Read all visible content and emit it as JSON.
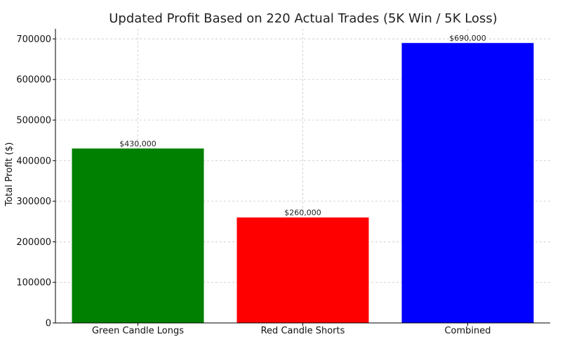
{
  "chart_data": {
    "type": "bar",
    "title": "Updated Profit Based on 220 Actual Trades (5K Win / 5K Loss)",
    "xlabel": "",
    "ylabel": "Total Profit ($)",
    "categories": [
      "Green Candle Longs",
      "Red Candle Shorts",
      "Combined"
    ],
    "values": [
      430000,
      260000,
      690000
    ],
    "data_labels": [
      "$430,000",
      "$260,000",
      "$690,000"
    ],
    "colors": [
      "#008000",
      "#ff0000",
      "#0000ff"
    ],
    "ylim": [
      0,
      725000
    ],
    "yticks": [
      0,
      100000,
      200000,
      300000,
      400000,
      500000,
      600000,
      700000
    ],
    "ytick_labels": [
      "0",
      "100000",
      "200000",
      "300000",
      "400000",
      "500000",
      "600000",
      "700000"
    ],
    "grid": true,
    "legend": "none"
  }
}
